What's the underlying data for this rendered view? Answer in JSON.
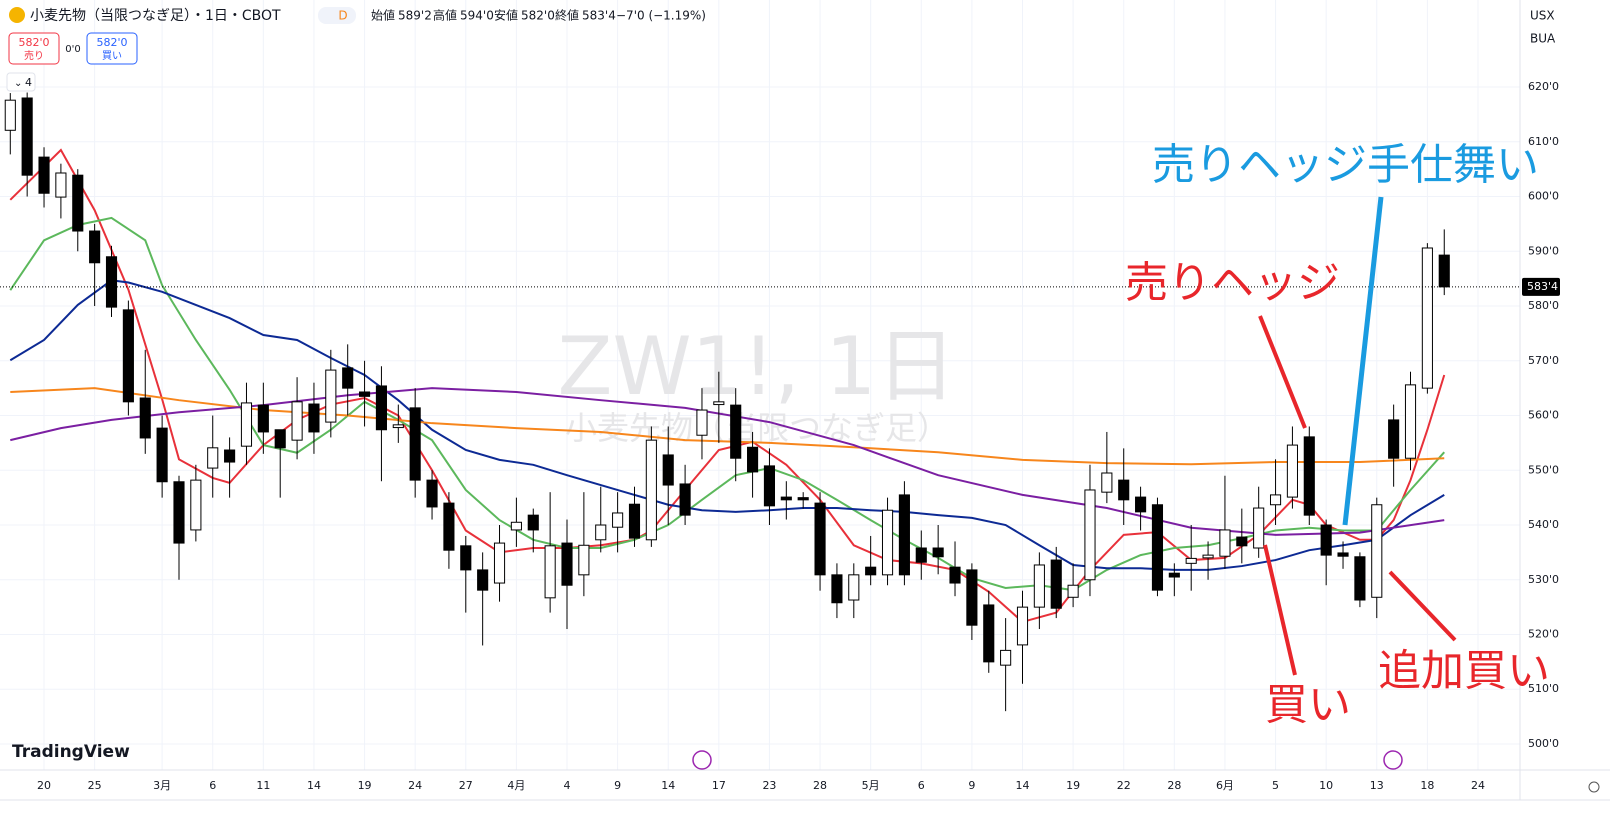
{
  "header": {
    "title": "小麦先物（当限つなぎ足）・1日・CBOT",
    "interval": "D",
    "open_label": "始値",
    "open": "589'2",
    "high_label": "高値",
    "high": "594'0",
    "low_label": "安値",
    "low": "582'0",
    "close_label": "終値",
    "close": "583'4",
    "change": "−7'0 (−1.19%)",
    "currency": "USX",
    "unit": "BUA"
  },
  "trade": {
    "sell_price": "582'0",
    "sell": "売り",
    "spread": "0'0",
    "buy_price": "582'0",
    "buy": "買い"
  },
  "indicators": "4",
  "watermark": {
    "symbol": "ZW1!, 1日",
    "name": "小麦先物（当限つなぎ足）"
  },
  "logo": "TradingView",
  "annotations": [
    "売りヘッジ手仕舞い",
    "売りヘッジ",
    "買い",
    "追加買い"
  ],
  "chart_data": {
    "type": "candlestick",
    "up_color": "#ffffff",
    "down_color": "#000000",
    "open": [
      612.1,
      618,
      607.2,
      599.9,
      603.9,
      593.7,
      589,
      579.3,
      563.2,
      557.7,
      547.9,
      539.1,
      550.4,
      553.7,
      554.4,
      561.9,
      557.4,
      555.5,
      562.1,
      558.8,
      568.7,
      564.3,
      565.4,
      557.8,
      561.4,
      548.2,
      544,
      536.2,
      531.8,
      529.4,
      539.1,
      541.8,
      526.7,
      536.7,
      530.9,
      537.3,
      539.6,
      543.8,
      537.3,
      552.8,
      547.5,
      556.4,
      562,
      561.9,
      554.2,
      550.8,
      545.1,
      545,
      544,
      530.9,
      526.3,
      532.3,
      530.9,
      545.5,
      535.8,
      535.8,
      532.3,
      531.8,
      525.4,
      514.4,
      518.1,
      525,
      533.6,
      526.8,
      530,
      546,
      548.2,
      545.1,
      543.7,
      531.2,
      533,
      534,
      534.3,
      537.8,
      535.8,
      543.7,
      545.1,
      556.1,
      540,
      534.9,
      534.2,
      526.8,
      559.2,
      552.2,
      565,
      589.3
    ],
    "high": [
      618.9,
      619,
      609,
      606,
      605,
      595,
      591,
      581,
      572,
      560,
      549,
      551,
      560,
      556,
      566,
      566,
      557,
      567,
      566,
      572,
      573,
      570,
      569,
      562,
      565,
      550,
      546,
      538,
      535,
      540,
      545,
      543,
      546,
      541,
      546,
      547,
      546,
      547,
      558,
      558,
      551,
      565,
      568,
      565,
      557,
      554,
      548,
      546,
      546,
      533,
      533,
      538,
      545,
      548,
      539,
      540,
      537,
      533,
      528,
      523,
      528,
      535,
      536,
      533,
      551,
      557,
      554,
      547,
      545,
      533,
      540,
      537,
      549,
      543,
      547,
      552,
      558,
      558,
      541,
      537,
      535,
      545,
      562,
      568,
      591.5,
      594
    ],
    "low": [
      607.7,
      600,
      598,
      596,
      590,
      580,
      578,
      560,
      553,
      545,
      530,
      537,
      545,
      545,
      551,
      553,
      545,
      552,
      553,
      556,
      560,
      558,
      548,
      555,
      545,
      541,
      532,
      524,
      518,
      526,
      536,
      535,
      524,
      521,
      527,
      535,
      535,
      536,
      536,
      540,
      540,
      552,
      555,
      548,
      545,
      540,
      541,
      543,
      528,
      523,
      523,
      529,
      529,
      529,
      530,
      531,
      527,
      519,
      513,
      506,
      511,
      521,
      523,
      525,
      527,
      544,
      540,
      539,
      527,
      527,
      528,
      530,
      532,
      533,
      534,
      540,
      543,
      540,
      529,
      532,
      525,
      523,
      547,
      550,
      564,
      582
    ],
    "close": [
      617.6,
      603.9,
      600.6,
      604.3,
      593.7,
      587.9,
      579.8,
      562.5,
      555.9,
      547.9,
      536.7,
      548.2,
      554.1,
      551.5,
      562.3,
      557,
      554.1,
      562.5,
      557,
      568.3,
      565,
      563.5,
      557.4,
      558.3,
      548.2,
      543.3,
      535.4,
      531.8,
      528.1,
      536.7,
      540.5,
      539.1,
      536.2,
      529,
      536.3,
      540,
      542.2,
      537.6,
      555.5,
      547.3,
      541.8,
      561,
      562.5,
      552.2,
      549.7,
      543.5,
      544.6,
      544.6,
      530.9,
      525.8,
      530.9,
      530.9,
      542.7,
      530.9,
      533.2,
      534.2,
      529.4,
      521.7,
      515,
      517.1,
      525,
      532.7,
      524.8,
      529,
      546.4,
      549.5,
      544.6,
      542.4,
      528.1,
      530.5,
      533.9,
      534.5,
      539.1,
      536.2,
      543.1,
      545.5,
      554.6,
      541.8,
      534.5,
      534.3,
      526.3,
      543.7,
      552.2,
      565.6,
      590.6,
      583.5
    ],
    "lines": [
      {
        "color": "#e8313a",
        "x": [
          0,
          3,
          5,
          7,
          9,
          10,
          12,
          13,
          15,
          17,
          19,
          21,
          23,
          25,
          27,
          29,
          31,
          33,
          35,
          37,
          38,
          40,
          42,
          44,
          46,
          48,
          50,
          52,
          54,
          56,
          58,
          60,
          62,
          64,
          66,
          68,
          70,
          72,
          74,
          76,
          77,
          78,
          80,
          81,
          82,
          83,
          84,
          85
        ],
        "values": [
          599.4,
          608.5,
          597.5,
          583,
          563,
          552,
          548.6,
          547.7,
          554.6,
          559.2,
          562,
          563.2,
          560,
          550,
          539,
          535,
          535.8,
          535.8,
          536.3,
          537.3,
          539,
          546.4,
          553.7,
          555.2,
          551,
          544.6,
          536.3,
          533.6,
          533,
          531.8,
          527.8,
          522.3,
          524,
          531.8,
          538.2,
          538.7,
          533.6,
          534,
          538.2,
          544.6,
          543.7,
          540,
          537.3,
          537.3,
          540.9,
          548.2,
          557.4,
          567.4
        ]
      },
      {
        "color": "#5cb85c",
        "x": [
          0,
          2,
          4,
          6,
          8,
          9,
          11,
          13,
          15,
          17,
          19,
          21,
          23,
          25,
          27,
          29,
          31,
          33,
          35,
          37,
          39,
          41,
          43,
          45,
          47,
          49,
          51,
          53,
          55,
          57,
          59,
          61,
          63,
          65,
          67,
          69,
          71,
          73,
          75,
          77,
          79,
          81,
          83,
          85
        ],
        "values": [
          582.9,
          592,
          594.8,
          596.1,
          592,
          583.8,
          573.8,
          564.7,
          554.6,
          553.2,
          557.4,
          562.5,
          559.2,
          555.5,
          546.4,
          540.9,
          537.3,
          535.8,
          535.8,
          537.3,
          540,
          544.6,
          549.1,
          550.4,
          548.2,
          544.6,
          540.9,
          537.3,
          534,
          530.3,
          528.5,
          529,
          528.1,
          531.8,
          534.5,
          535.8,
          536.3,
          537.6,
          539,
          539.5,
          539,
          539,
          546.4,
          553.3
        ]
      },
      {
        "color": "#0d2a94",
        "x": [
          0,
          2,
          4,
          6,
          7,
          9,
          11,
          13,
          15,
          17,
          19,
          21,
          23,
          25,
          27,
          29,
          31,
          33,
          35,
          37,
          39,
          41,
          43,
          45,
          47,
          49,
          51,
          53,
          55,
          57,
          59,
          61,
          63,
          65,
          67,
          69,
          71,
          73,
          75,
          77,
          79,
          81,
          83,
          85
        ],
        "values": [
          570.1,
          573.8,
          580.2,
          584.7,
          584.3,
          582.6,
          580.2,
          577.8,
          574.7,
          573.8,
          570.5,
          567.4,
          562.8,
          557.4,
          553.7,
          551.9,
          551,
          549.1,
          547.3,
          545.5,
          543.7,
          542.7,
          542.4,
          542.7,
          543.1,
          543.1,
          542.7,
          542.4,
          541.8,
          541.3,
          540,
          536.3,
          532.7,
          532.1,
          532.1,
          531.8,
          531.8,
          532.5,
          533.6,
          535.4,
          536.3,
          537.3,
          541.8,
          545.5
        ]
      },
      {
        "color": "#f7861c",
        "x": [
          0,
          5,
          10,
          15,
          20,
          25,
          30,
          35,
          40,
          45,
          50,
          55,
          60,
          65,
          70,
          75,
          80,
          85
        ],
        "values": [
          564.3,
          565,
          562.8,
          561,
          560,
          558.6,
          557.7,
          557,
          555.5,
          555,
          554.2,
          553.3,
          551.9,
          551.3,
          551.1,
          551.5,
          551.5,
          552.2
        ]
      },
      {
        "color": "#7b1fa2",
        "x": [
          0,
          3,
          6,
          10,
          15,
          20,
          25,
          30,
          35,
          40,
          45,
          50,
          55,
          60,
          65,
          70,
          75,
          80,
          85
        ],
        "values": [
          555.5,
          557.7,
          559.2,
          560.6,
          561.9,
          563.7,
          565,
          564.3,
          562.8,
          561.4,
          558.8,
          554.6,
          549.1,
          545.5,
          543.1,
          539.5,
          538.2,
          538.6,
          540.9
        ]
      }
    ],
    "xlim": [
      -0.61,
      89.49
    ],
    "xticks": [
      {
        "value": 2,
        "label": "20"
      },
      {
        "value": 5,
        "label": "25"
      },
      {
        "value": 9,
        "label": "3月"
      },
      {
        "value": 12,
        "label": "6"
      },
      {
        "value": 15,
        "label": "11"
      },
      {
        "value": 18,
        "label": "14"
      },
      {
        "value": 21,
        "label": "19"
      },
      {
        "value": 24,
        "label": "24"
      },
      {
        "value": 27,
        "label": "27"
      },
      {
        "value": 30,
        "label": "4月"
      },
      {
        "value": 33,
        "label": "4"
      },
      {
        "value": 36,
        "label": "9"
      },
      {
        "value": 39,
        "label": "14"
      },
      {
        "value": 42,
        "label": "17"
      },
      {
        "value": 45,
        "label": "23"
      },
      {
        "value": 48,
        "label": "28"
      },
      {
        "value": 51,
        "label": "5月"
      },
      {
        "value": 54,
        "label": "6"
      },
      {
        "value": 57,
        "label": "9"
      },
      {
        "value": 60,
        "label": "14"
      },
      {
        "value": 63,
        "label": "19"
      },
      {
        "value": 66,
        "label": "22"
      },
      {
        "value": 69,
        "label": "28"
      },
      {
        "value": 72,
        "label": "6月"
      },
      {
        "value": 75,
        "label": "5"
      },
      {
        "value": 78,
        "label": "10"
      },
      {
        "value": 81,
        "label": "13"
      },
      {
        "value": 84,
        "label": "18"
      },
      {
        "value": 87,
        "label": "24"
      }
    ],
    "ylim": [
      495.25,
      622.2
    ],
    "yticks": [
      {
        "value": 500,
        "label": "500'0"
      },
      {
        "value": 510,
        "label": "510'0"
      },
      {
        "value": 520,
        "label": "520'0"
      },
      {
        "value": 530,
        "label": "530'0"
      },
      {
        "value": 540,
        "label": "540'0"
      },
      {
        "value": 550,
        "label": "550'0"
      },
      {
        "value": 560,
        "label": "560'0"
      },
      {
        "value": 570,
        "label": "570'0"
      },
      {
        "value": 580,
        "label": "580'0"
      },
      {
        "value": 590,
        "label": "590'0"
      },
      {
        "value": 600,
        "label": "600'0"
      },
      {
        "value": 610,
        "label": "610'0"
      },
      {
        "value": 620,
        "label": "620'0"
      }
    ],
    "grid": true
  }
}
